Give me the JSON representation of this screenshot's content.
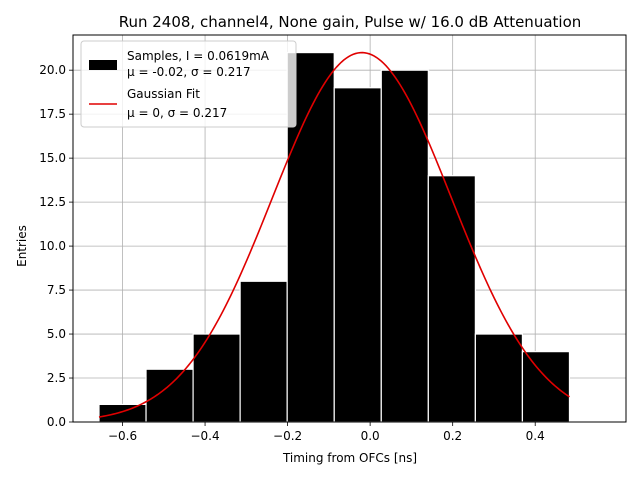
{
  "chart_data": {
    "type": "bar",
    "title": "Run 2408, channel4, None gain, Pulse w/ 16.0 dB Attenuation",
    "xlabel": "Timing from OFCs [ns]",
    "ylabel": "Entries",
    "xlim": [
      -0.72,
      0.62
    ],
    "ylim": [
      0,
      22
    ],
    "xticks": [
      -0.6,
      -0.4,
      -0.2,
      0.0,
      0.2,
      0.4
    ],
    "xtick_labels": [
      "−0.6",
      "−0.4",
      "−0.2",
      "0.0",
      "0.2",
      "0.4"
    ],
    "yticks": [
      0.0,
      2.5,
      5.0,
      7.5,
      10.0,
      12.5,
      15.0,
      17.5,
      20.0
    ],
    "ytick_labels": [
      "0.0",
      "2.5",
      "5.0",
      "7.5",
      "10.0",
      "12.5",
      "15.0",
      "17.5",
      "20.0"
    ],
    "grid": true,
    "legend_position": "top-left",
    "histogram": {
      "name": "Samples, I = 0.0619mA",
      "stats_label": "μ = -0.02, σ = 0.217",
      "color": "#000000",
      "edgecolor": "#ffffff",
      "bin_edges": [
        -0.657,
        -0.543,
        -0.429,
        -0.315,
        -0.201,
        -0.087,
        0.027,
        0.141,
        0.255,
        0.369,
        0.483
      ],
      "counts": [
        1,
        3,
        5,
        8,
        21,
        19,
        20,
        14,
        5,
        4
      ]
    },
    "fit": {
      "name": "Gaussian Fit",
      "stats_label": "μ = 0, σ = 0.217",
      "color": "#e00000",
      "mu": -0.02,
      "sigma": 0.217,
      "amplitude": 21.0,
      "x_range": [
        -0.657,
        0.483
      ]
    }
  }
}
